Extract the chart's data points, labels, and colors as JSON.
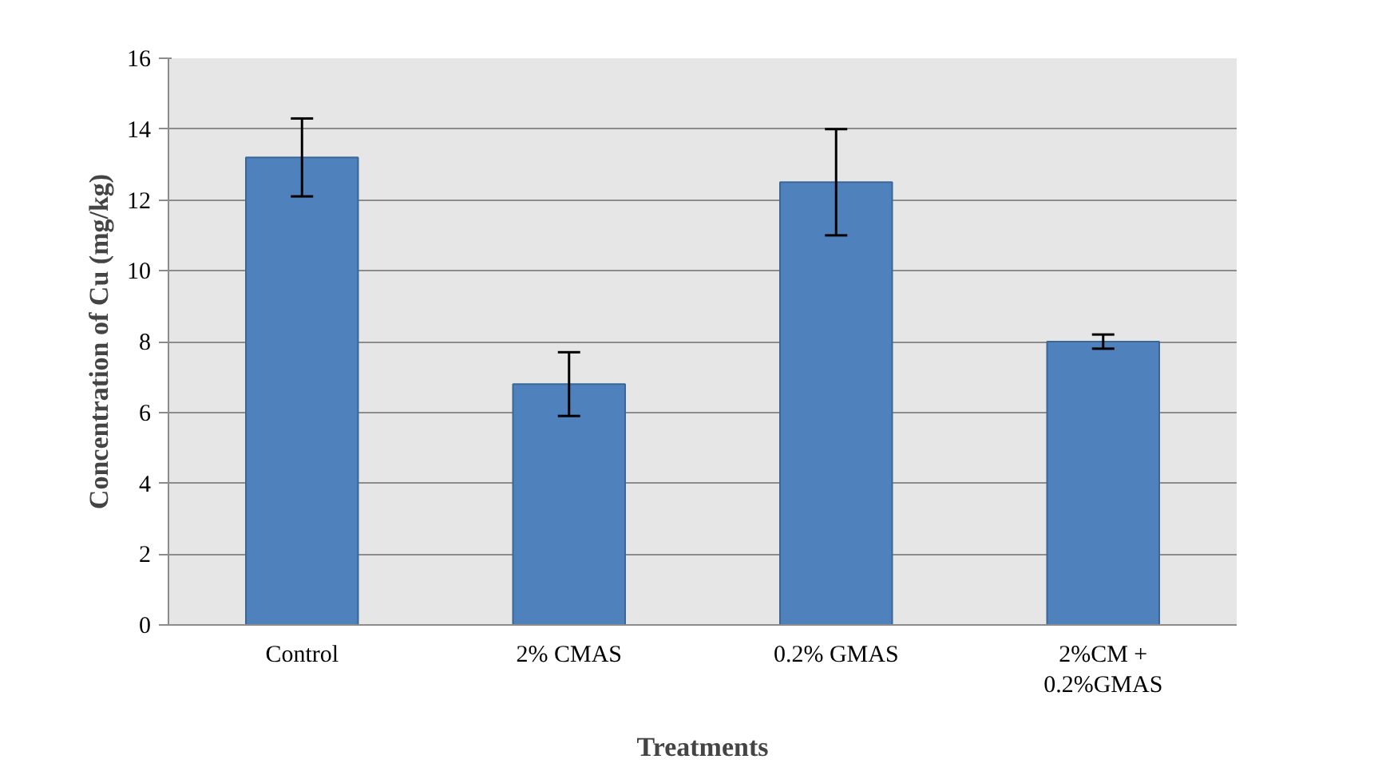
{
  "chart_data": {
    "type": "bar",
    "xlabel": "Treatments",
    "ylabel": "Concentration of Cu (mg/kg)",
    "categories": [
      "Control",
      "2% CMAS",
      "0.2% GMAS",
      "2%CM +\n0.2%GMAS"
    ],
    "values": [
      13.2,
      6.8,
      12.5,
      8.0
    ],
    "errors": [
      1.1,
      0.9,
      1.5,
      0.2
    ],
    "color": "#4f81bd",
    "ylim": [
      0,
      16
    ],
    "yticks": [
      0,
      2,
      4,
      6,
      8,
      10,
      12,
      14,
      16
    ],
    "grid": "y"
  }
}
